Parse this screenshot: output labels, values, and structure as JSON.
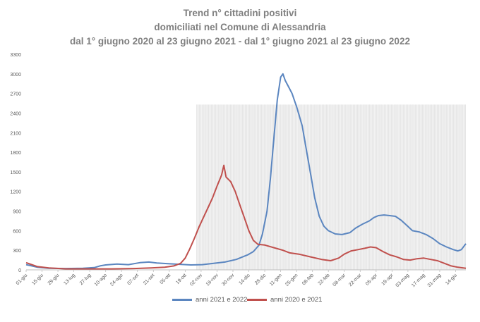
{
  "chart_data": {
    "type": "line",
    "title": [
      "Trend n° cittadini positivi",
      "domiciliati nel Comune di Alessandria",
      "dal 1° giugno 2020 al 23 giugno 2021 - dal 1° giugno 2021 al 23 giugno 2022"
    ],
    "xlabel": "",
    "ylabel": "",
    "ylim": [
      0,
      3300
    ],
    "yticks": [
      0,
      300,
      600,
      900,
      1200,
      1500,
      1800,
      2100,
      2400,
      2700,
      3000,
      3300
    ],
    "xlim": [
      0,
      387
    ],
    "xticks": [
      {
        "day": 0,
        "label": "01-giu"
      },
      {
        "day": 14,
        "label": "15-giu"
      },
      {
        "day": 28,
        "label": "29-giu"
      },
      {
        "day": 42,
        "label": "13-lug"
      },
      {
        "day": 56,
        "label": "27-lug"
      },
      {
        "day": 70,
        "label": "10-ago"
      },
      {
        "day": 84,
        "label": "24-ago"
      },
      {
        "day": 98,
        "label": "07-set"
      },
      {
        "day": 112,
        "label": "21-set"
      },
      {
        "day": 126,
        "label": "05-ott"
      },
      {
        "day": 140,
        "label": "19-ott"
      },
      {
        "day": 154,
        "label": "02-nov"
      },
      {
        "day": 168,
        "label": "16-nov"
      },
      {
        "day": 182,
        "label": "30-nov"
      },
      {
        "day": 196,
        "label": "14-dic"
      },
      {
        "day": 210,
        "label": "28-dic"
      },
      {
        "day": 224,
        "label": "11-gen"
      },
      {
        "day": 238,
        "label": "25-gen"
      },
      {
        "day": 252,
        "label": "08-feb"
      },
      {
        "day": 266,
        "label": "22-feb"
      },
      {
        "day": 280,
        "label": "08-mar"
      },
      {
        "day": 294,
        "label": "22-mar"
      },
      {
        "day": 308,
        "label": "05-apr"
      },
      {
        "day": 322,
        "label": "19-apr"
      },
      {
        "day": 336,
        "label": "03-mag"
      },
      {
        "day": 350,
        "label": "17-mag"
      },
      {
        "day": 364,
        "label": "31-mag"
      },
      {
        "day": 378,
        "label": "14-giu"
      }
    ],
    "series": [
      {
        "name": "anni 2021 e 2022",
        "color": "#5b86c0",
        "points": [
          [
            0,
            80
          ],
          [
            5,
            60
          ],
          [
            10,
            40
          ],
          [
            20,
            25
          ],
          [
            35,
            20
          ],
          [
            50,
            25
          ],
          [
            60,
            35
          ],
          [
            65,
            60
          ],
          [
            70,
            75
          ],
          [
            80,
            90
          ],
          [
            90,
            80
          ],
          [
            100,
            110
          ],
          [
            108,
            120
          ],
          [
            115,
            105
          ],
          [
            125,
            95
          ],
          [
            135,
            85
          ],
          [
            145,
            75
          ],
          [
            155,
            80
          ],
          [
            165,
            100
          ],
          [
            175,
            120
          ],
          [
            185,
            160
          ],
          [
            195,
            230
          ],
          [
            200,
            280
          ],
          [
            205,
            380
          ],
          [
            208,
            550
          ],
          [
            212,
            900
          ],
          [
            215,
            1400
          ],
          [
            218,
            2000
          ],
          [
            221,
            2600
          ],
          [
            224,
            2950
          ],
          [
            226,
            3000
          ],
          [
            228,
            2900
          ],
          [
            231,
            2800
          ],
          [
            234,
            2700
          ],
          [
            236,
            2600
          ],
          [
            238,
            2500
          ],
          [
            240,
            2380
          ],
          [
            243,
            2200
          ],
          [
            246,
            1900
          ],
          [
            250,
            1500
          ],
          [
            254,
            1100
          ],
          [
            258,
            820
          ],
          [
            262,
            670
          ],
          [
            266,
            600
          ],
          [
            272,
            550
          ],
          [
            278,
            540
          ],
          [
            285,
            570
          ],
          [
            290,
            640
          ],
          [
            296,
            700
          ],
          [
            302,
            750
          ],
          [
            306,
            800
          ],
          [
            310,
            830
          ],
          [
            315,
            840
          ],
          [
            320,
            830
          ],
          [
            325,
            820
          ],
          [
            330,
            760
          ],
          [
            335,
            680
          ],
          [
            340,
            600
          ],
          [
            346,
            580
          ],
          [
            352,
            540
          ],
          [
            358,
            480
          ],
          [
            364,
            400
          ],
          [
            370,
            350
          ],
          [
            376,
            310
          ],
          [
            380,
            290
          ],
          [
            383,
            310
          ],
          [
            387,
            400
          ]
        ]
      },
      {
        "name": "anni 2020 e 2021",
        "color": "#c0504d",
        "points": [
          [
            0,
            110
          ],
          [
            5,
            80
          ],
          [
            10,
            50
          ],
          [
            20,
            30
          ],
          [
            35,
            15
          ],
          [
            55,
            15
          ],
          [
            75,
            15
          ],
          [
            95,
            20
          ],
          [
            110,
            30
          ],
          [
            122,
            40
          ],
          [
            130,
            60
          ],
          [
            136,
            100
          ],
          [
            140,
            180
          ],
          [
            144,
            320
          ],
          [
            148,
            480
          ],
          [
            152,
            650
          ],
          [
            156,
            800
          ],
          [
            160,
            950
          ],
          [
            164,
            1100
          ],
          [
            168,
            1280
          ],
          [
            172,
            1450
          ],
          [
            174,
            1600
          ],
          [
            176,
            1420
          ],
          [
            180,
            1350
          ],
          [
            184,
            1200
          ],
          [
            188,
            1000
          ],
          [
            192,
            800
          ],
          [
            196,
            600
          ],
          [
            200,
            450
          ],
          [
            204,
            390
          ],
          [
            210,
            380
          ],
          [
            218,
            340
          ],
          [
            226,
            300
          ],
          [
            232,
            260
          ],
          [
            240,
            240
          ],
          [
            250,
            200
          ],
          [
            260,
            160
          ],
          [
            268,
            140
          ],
          [
            275,
            180
          ],
          [
            280,
            240
          ],
          [
            286,
            290
          ],
          [
            292,
            310
          ],
          [
            298,
            330
          ],
          [
            303,
            350
          ],
          [
            308,
            340
          ],
          [
            314,
            280
          ],
          [
            320,
            230
          ],
          [
            326,
            200
          ],
          [
            332,
            160
          ],
          [
            338,
            150
          ],
          [
            344,
            170
          ],
          [
            350,
            180
          ],
          [
            356,
            160
          ],
          [
            362,
            140
          ],
          [
            368,
            100
          ],
          [
            374,
            60
          ],
          [
            380,
            40
          ],
          [
            387,
            25
          ]
        ]
      }
    ],
    "legend": "bottom",
    "grid": false
  }
}
